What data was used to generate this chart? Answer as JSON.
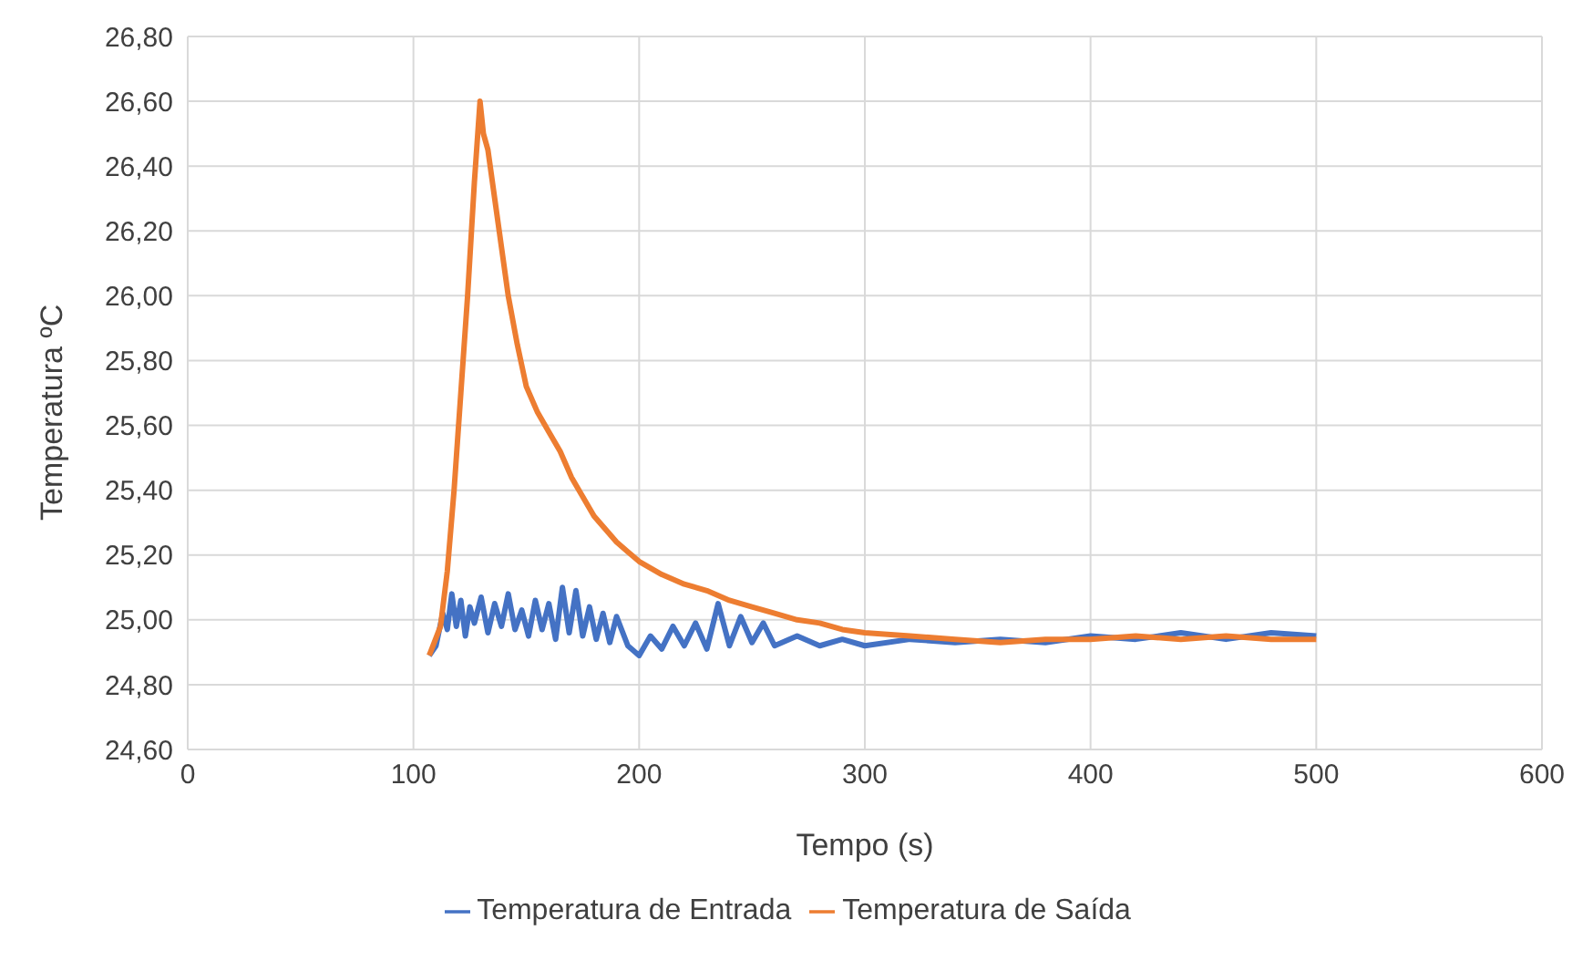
{
  "chart_data": {
    "type": "line",
    "xlabel": "Tempo (s)",
    "ylabel": "Temperatura ºC",
    "xlim": [
      0,
      600
    ],
    "xticks": [
      0,
      100,
      200,
      300,
      400,
      500,
      600
    ],
    "ylim": [
      24.6,
      26.8
    ],
    "yticks": [
      {
        "value": 24.6,
        "label": "24,60"
      },
      {
        "value": 24.8,
        "label": "24,80"
      },
      {
        "value": 25.0,
        "label": "25,00"
      },
      {
        "value": 25.2,
        "label": "25,20"
      },
      {
        "value": 25.4,
        "label": "25,40"
      },
      {
        "value": 25.6,
        "label": "25,60"
      },
      {
        "value": 25.8,
        "label": "25,80"
      },
      {
        "value": 26.0,
        "label": "26,00"
      },
      {
        "value": 26.2,
        "label": "26,20"
      },
      {
        "value": 26.4,
        "label": "26,40"
      },
      {
        "value": 26.6,
        "label": "26,60"
      },
      {
        "value": 26.8,
        "label": "26,80"
      }
    ],
    "grid": true,
    "legend": "bottom",
    "marker": "none",
    "line_style": "solid",
    "series": [
      {
        "name": "Temperatura de Entrada",
        "color": "#4472c4",
        "x": [
          107,
          110,
          113,
          115,
          117,
          119,
          121,
          123,
          125,
          127,
          130,
          133,
          136,
          139,
          142,
          145,
          148,
          151,
          154,
          157,
          160,
          163,
          166,
          169,
          172,
          175,
          178,
          181,
          184,
          187,
          190,
          195,
          200,
          205,
          210,
          215,
          220,
          225,
          230,
          235,
          240,
          245,
          250,
          255,
          260,
          270,
          280,
          290,
          300,
          320,
          340,
          360,
          380,
          400,
          420,
          440,
          460,
          480,
          500
        ],
        "values": [
          24.89,
          24.92,
          25.02,
          24.97,
          25.08,
          24.98,
          25.06,
          24.95,
          25.04,
          24.99,
          25.07,
          24.96,
          25.05,
          24.98,
          25.08,
          24.97,
          25.03,
          24.95,
          25.06,
          24.97,
          25.05,
          24.94,
          25.1,
          24.96,
          25.09,
          24.95,
          25.04,
          24.94,
          25.02,
          24.93,
          25.01,
          24.92,
          24.89,
          24.95,
          24.91,
          24.98,
          24.92,
          24.99,
          24.91,
          25.05,
          24.92,
          25.01,
          24.93,
          24.99,
          24.92,
          24.95,
          24.92,
          24.94,
          24.92,
          24.94,
          24.93,
          24.94,
          24.93,
          24.95,
          24.94,
          24.96,
          24.94,
          24.96,
          24.95
        ]
      },
      {
        "name": "Temperatura de Saída",
        "color": "#ed7d31",
        "x": [
          107,
          112,
          115,
          118,
          121,
          124,
          127,
          129.5,
          131,
          133,
          136,
          139,
          142,
          146,
          150,
          155,
          160,
          165,
          170,
          175,
          180,
          185,
          190,
          195,
          200,
          210,
          220,
          230,
          240,
          250,
          260,
          270,
          280,
          290,
          300,
          320,
          340,
          360,
          380,
          400,
          420,
          440,
          460,
          480,
          500
        ],
        "values": [
          24.89,
          24.98,
          25.15,
          25.4,
          25.7,
          26.0,
          26.35,
          26.6,
          26.5,
          26.45,
          26.3,
          26.15,
          26.0,
          25.85,
          25.72,
          25.64,
          25.58,
          25.52,
          25.44,
          25.38,
          25.32,
          25.28,
          25.24,
          25.21,
          25.18,
          25.14,
          25.11,
          25.09,
          25.06,
          25.04,
          25.02,
          25.0,
          24.99,
          24.97,
          24.96,
          24.95,
          24.94,
          24.93,
          24.94,
          24.94,
          24.95,
          24.94,
          24.95,
          24.94,
          24.94
        ]
      }
    ]
  }
}
